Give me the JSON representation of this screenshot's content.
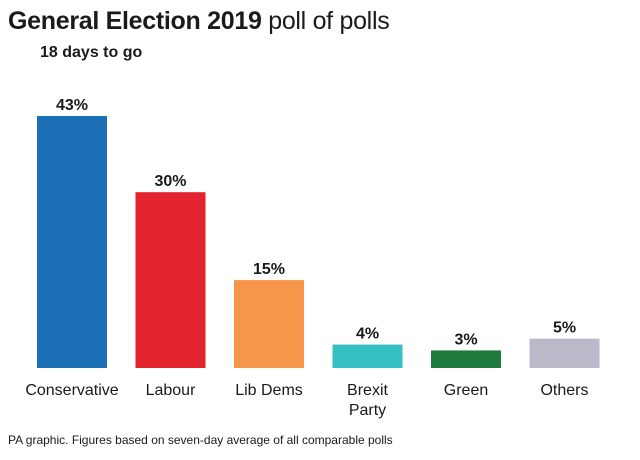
{
  "header": {
    "title_bold": "General Election 2019",
    "title_light": "poll of polls",
    "subtitle": "18 days to go"
  },
  "footer": {
    "note": "PA graphic. Figures based on seven-day average of all comparable polls"
  },
  "chart_data": {
    "type": "bar",
    "title": "General Election 2019 poll of polls",
    "subtitle": "18 days to go",
    "xlabel": "",
    "ylabel": "",
    "ylim": [
      0,
      43
    ],
    "grid": false,
    "categories": [
      "Conservative",
      "Labour",
      "Lib Dems",
      "Brexit Party",
      "Green",
      "Others"
    ],
    "category_lines": [
      [
        "Conservative"
      ],
      [
        "Labour"
      ],
      [
        "Lib Dems"
      ],
      [
        "Brexit",
        "Party"
      ],
      [
        "Green"
      ],
      [
        "Others"
      ]
    ],
    "values": [
      43,
      30,
      15,
      4,
      3,
      5
    ],
    "value_labels": [
      "43%",
      "30%",
      "15%",
      "4%",
      "3%",
      "5%"
    ],
    "colors": [
      "#1a6fb5",
      "#e3232e",
      "#f5964a",
      "#35c0c3",
      "#1f7a3d",
      "#b9b9c9"
    ]
  }
}
